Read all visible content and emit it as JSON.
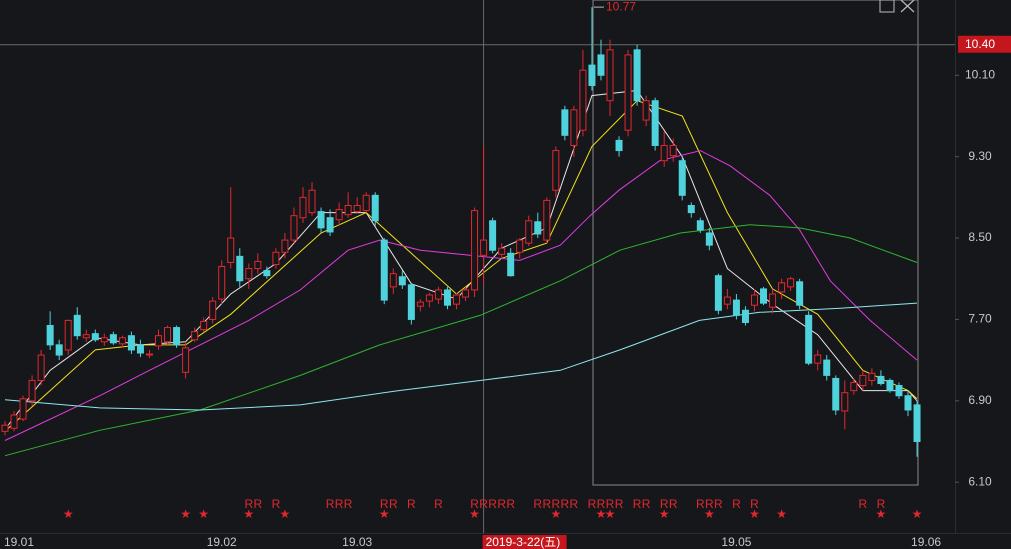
{
  "chart_data": {
    "type": "candlestick",
    "up_color": "#e0282f",
    "down_color": "#4fd2dc",
    "ylim": [
      5.63,
      10.84
    ],
    "yticks": [
      {
        "value": 10.1,
        "label": "10.10"
      },
      {
        "value": 9.3,
        "label": "9.30"
      },
      {
        "value": 8.5,
        "label": "8.50"
      },
      {
        "value": 7.7,
        "label": "7.70"
      },
      {
        "value": 6.9,
        "label": "6.90"
      },
      {
        "value": 6.1,
        "label": "6.10"
      }
    ],
    "categories": [
      "19.01",
      null,
      null,
      null,
      null,
      null,
      null,
      null,
      null,
      null,
      null,
      null,
      null,
      null,
      null,
      null,
      null,
      null,
      null,
      null,
      null,
      null,
      null,
      null,
      "19.02",
      null,
      null,
      null,
      null,
      null,
      null,
      null,
      null,
      null,
      null,
      null,
      null,
      null,
      null,
      "19.03",
      null,
      null,
      null,
      null,
      null,
      null,
      null,
      null,
      null,
      null,
      null,
      null,
      null,
      "2019-3-22(五)",
      null,
      null,
      null,
      null,
      null,
      null,
      null,
      null,
      null,
      null,
      null,
      null,
      null,
      null,
      null,
      null,
      null,
      null,
      null,
      null,
      null,
      null,
      null,
      null,
      null,
      null,
      null,
      "19.05",
      null,
      null,
      null,
      null,
      null,
      null,
      null,
      null,
      null,
      null,
      null,
      null,
      null,
      null,
      null,
      null,
      null,
      null,
      null,
      null,
      "19.06"
    ],
    "candles": [
      [
        6.6,
        6.7,
        6.56,
        6.66
      ],
      [
        6.63,
        6.8,
        6.6,
        6.76
      ],
      [
        6.72,
        6.95,
        6.7,
        6.92
      ],
      [
        6.9,
        7.15,
        6.85,
        7.1
      ],
      [
        7.1,
        7.4,
        7.05,
        7.35
      ],
      [
        7.64,
        7.78,
        7.4,
        7.45
      ],
      [
        7.45,
        7.5,
        7.3,
        7.35
      ],
      [
        7.4,
        7.7,
        7.35,
        7.69
      ],
      [
        7.74,
        7.82,
        7.5,
        7.54
      ],
      [
        7.52,
        7.6,
        7.48,
        7.55
      ],
      [
        7.56,
        7.6,
        7.48,
        7.5
      ],
      [
        7.48,
        7.56,
        7.44,
        7.52
      ],
      [
        7.55,
        7.58,
        7.45,
        7.47
      ],
      [
        7.46,
        7.54,
        7.42,
        7.52
      ],
      [
        7.54,
        7.58,
        7.36,
        7.4
      ],
      [
        7.45,
        7.5,
        7.33,
        7.37
      ],
      [
        7.36,
        7.4,
        7.32,
        7.36
      ],
      [
        7.44,
        7.6,
        7.4,
        7.54
      ],
      [
        7.48,
        7.64,
        7.45,
        7.62
      ],
      [
        7.62,
        7.64,
        7.42,
        7.45
      ],
      [
        7.18,
        7.48,
        7.12,
        7.42
      ],
      [
        7.5,
        7.62,
        7.48,
        7.58
      ],
      [
        7.6,
        7.72,
        7.58,
        7.68
      ],
      [
        7.7,
        7.92,
        7.66,
        7.88
      ],
      [
        7.9,
        8.28,
        7.85,
        8.22
      ],
      [
        8.26,
        9.0,
        8.2,
        8.5
      ],
      [
        8.32,
        8.4,
        8.02,
        8.08
      ],
      [
        8.1,
        8.25,
        8.0,
        8.2
      ],
      [
        8.2,
        8.35,
        8.15,
        8.27
      ],
      [
        8.18,
        8.22,
        8.1,
        8.13
      ],
      [
        8.24,
        8.4,
        8.2,
        8.36
      ],
      [
        8.36,
        8.55,
        8.3,
        8.48
      ],
      [
        8.48,
        8.8,
        8.45,
        8.72
      ],
      [
        8.7,
        9.0,
        8.65,
        8.9
      ],
      [
        8.75,
        9.05,
        8.72,
        8.97
      ],
      [
        8.76,
        8.8,
        8.55,
        8.6
      ],
      [
        8.7,
        8.78,
        8.52,
        8.56
      ],
      [
        8.68,
        8.85,
        8.62,
        8.78
      ],
      [
        8.73,
        8.95,
        8.7,
        8.82
      ],
      [
        8.76,
        8.9,
        8.74,
        8.82
      ],
      [
        8.77,
        8.95,
        8.75,
        8.92
      ],
      [
        8.92,
        8.95,
        8.62,
        8.67
      ],
      [
        8.48,
        8.5,
        7.85,
        7.89
      ],
      [
        8.02,
        8.2,
        7.95,
        8.15
      ],
      [
        8.12,
        8.18,
        8.0,
        8.04
      ],
      [
        8.04,
        8.06,
        7.65,
        7.7
      ],
      [
        7.83,
        7.9,
        7.78,
        7.87
      ],
      [
        7.88,
        7.96,
        7.82,
        7.94
      ],
      [
        7.9,
        8.02,
        7.85,
        7.99
      ],
      [
        7.99,
        8.02,
        7.8,
        7.84
      ],
      [
        7.85,
        7.96,
        7.8,
        7.94
      ],
      [
        7.92,
        8.02,
        7.88,
        7.99
      ],
      [
        7.99,
        8.8,
        7.92,
        8.77
      ],
      [
        8.33,
        9.4,
        8.05,
        8.48
      ],
      [
        8.67,
        8.7,
        8.35,
        8.38
      ],
      [
        8.34,
        8.45,
        8.3,
        8.4
      ],
      [
        8.35,
        8.4,
        8.12,
        8.13
      ],
      [
        8.36,
        8.5,
        8.3,
        8.48
      ],
      [
        8.45,
        8.72,
        8.42,
        8.67
      ],
      [
        8.66,
        8.75,
        8.5,
        8.54
      ],
      [
        8.48,
        8.9,
        8.45,
        8.87
      ],
      [
        8.97,
        9.4,
        8.9,
        9.36
      ],
      [
        9.76,
        9.8,
        9.46,
        9.51
      ],
      [
        9.41,
        9.8,
        9.3,
        9.76
      ],
      [
        9.56,
        10.35,
        9.5,
        10.15
      ],
      [
        10.2,
        10.77,
        9.95,
        10.0
      ],
      [
        10.3,
        10.45,
        10.05,
        10.1
      ],
      [
        9.85,
        10.45,
        9.7,
        10.35
      ],
      [
        9.46,
        9.5,
        9.3,
        9.36
      ],
      [
        9.56,
        10.35,
        9.5,
        10.3
      ],
      [
        10.35,
        10.4,
        9.8,
        9.85
      ],
      [
        9.66,
        9.9,
        9.6,
        9.85
      ],
      [
        9.85,
        9.88,
        9.36,
        9.41
      ],
      [
        9.26,
        9.55,
        9.2,
        9.41
      ],
      [
        9.31,
        9.48,
        9.25,
        9.41
      ],
      [
        9.26,
        9.3,
        8.87,
        8.92
      ],
      [
        8.82,
        8.85,
        8.7,
        8.75
      ],
      [
        8.67,
        8.7,
        8.55,
        8.58
      ],
      [
        8.55,
        8.6,
        8.38,
        8.43
      ],
      [
        8.13,
        8.15,
        7.75,
        7.79
      ],
      [
        7.85,
        8.0,
        7.8,
        7.92
      ],
      [
        7.89,
        7.95,
        7.7,
        7.74
      ],
      [
        7.79,
        7.83,
        7.64,
        7.67
      ],
      [
        7.84,
        8.0,
        7.78,
        7.94
      ],
      [
        8.0,
        8.02,
        7.84,
        7.86
      ],
      [
        7.82,
        8.0,
        7.76,
        7.95
      ],
      [
        7.97,
        8.1,
        7.9,
        8.06
      ],
      [
        8.02,
        8.12,
        7.98,
        8.1
      ],
      [
        8.07,
        8.1,
        7.8,
        7.84
      ],
      [
        7.74,
        7.78,
        7.25,
        7.27
      ],
      [
        7.27,
        7.4,
        7.2,
        7.35
      ],
      [
        7.3,
        7.35,
        7.1,
        7.15
      ],
      [
        7.12,
        7.15,
        6.76,
        6.81
      ],
      [
        6.8,
        7.1,
        6.62,
        6.98
      ],
      [
        7.0,
        7.12,
        6.96,
        7.08
      ],
      [
        7.05,
        7.2,
        7.0,
        7.15
      ],
      [
        7.1,
        7.22,
        7.05,
        7.17
      ],
      [
        7.14,
        7.2,
        7.05,
        7.07
      ],
      [
        7.1,
        7.12,
        6.98,
        7.0
      ],
      [
        7.05,
        7.08,
        6.92,
        6.95
      ],
      [
        6.95,
        7.0,
        6.75,
        6.81
      ],
      [
        6.86,
        6.9,
        6.35,
        6.5
      ]
    ],
    "ma_lines": [
      {
        "color": "#e8e8e8",
        "x": [
          0,
          5,
          10,
          15,
          20,
          25,
          30,
          35,
          40,
          45,
          50,
          55,
          60,
          65,
          70,
          75,
          80,
          85,
          90,
          95,
          100,
          101
        ],
        "values": [
          6.62,
          7.2,
          7.52,
          7.45,
          7.48,
          7.95,
          8.25,
          8.75,
          8.75,
          8.05,
          7.9,
          8.4,
          8.6,
          9.9,
          9.95,
          9.3,
          8.2,
          7.85,
          7.55,
          7.0,
          7.0,
          6.9
        ]
      },
      {
        "color": "#f2e21c",
        "x": [
          0,
          5,
          10,
          15,
          20,
          25,
          30,
          35,
          40,
          45,
          50,
          55,
          60,
          65,
          70,
          75,
          80,
          85,
          90,
          95,
          100,
          101
        ],
        "values": [
          6.6,
          7.0,
          7.4,
          7.45,
          7.45,
          7.75,
          8.15,
          8.55,
          8.75,
          8.35,
          7.95,
          8.3,
          8.45,
          9.4,
          9.85,
          9.7,
          8.75,
          8.0,
          7.75,
          7.2,
          7.0,
          6.92
        ]
      },
      {
        "color": "#e23ce0",
        "x": [
          0,
          10.5,
          16,
          21.6,
          27,
          32.7,
          38,
          41.5,
          46,
          51.5,
          57,
          61.5,
          64.8,
          68,
          72.5,
          77,
          80.3,
          84.7,
          88,
          91.4,
          95.8,
          101
        ],
        "values": [
          6.51,
          6.95,
          7.2,
          7.45,
          7.69,
          7.99,
          8.38,
          8.48,
          8.38,
          8.33,
          8.28,
          8.43,
          8.72,
          8.97,
          9.26,
          9.36,
          9.21,
          8.92,
          8.58,
          8.08,
          7.69,
          7.3
        ]
      },
      {
        "color": "#2fb52f",
        "x": [
          0,
          10.5,
          21.6,
          32.7,
          41.5,
          52.6,
          61.5,
          68.1,
          74.8,
          82.5,
          88,
          93.6,
          101
        ],
        "values": [
          6.36,
          6.61,
          6.81,
          7.15,
          7.45,
          7.74,
          8.08,
          8.38,
          8.55,
          8.63,
          8.6,
          8.5,
          8.26
        ]
      },
      {
        "color": "#8fe8f0",
        "x": [
          0,
          10.5,
          21.6,
          32.7,
          43.6,
          52.6,
          61.5,
          68.1,
          76.9,
          83.6,
          92.5,
          101
        ],
        "values": [
          6.91,
          6.83,
          6.81,
          6.86,
          7.0,
          7.1,
          7.2,
          7.4,
          7.69,
          7.77,
          7.81,
          7.86
        ]
      }
    ],
    "signals": [
      {
        "label": "R",
        "color": "#e0282f",
        "x": [
          27,
          28,
          30,
          36,
          37,
          38,
          42,
          43,
          45,
          48,
          52,
          53,
          54,
          55,
          56,
          59,
          60,
          61,
          62,
          63,
          65,
          66,
          67,
          68,
          70,
          71,
          73,
          74,
          77,
          78,
          79,
          81,
          83,
          95,
          97
        ]
      },
      {
        "label": "★",
        "color": "#e0282f",
        "x": [
          7,
          20,
          22,
          27,
          31,
          42,
          52,
          61,
          66,
          67,
          73,
          78,
          83,
          86,
          97,
          101
        ]
      }
    ],
    "high_marker": {
      "index": 65,
      "value": 10.77,
      "label": "10.77"
    },
    "crosshair": {
      "index": 53,
      "price": {
        "value": 10.4,
        "label": "10.40"
      }
    }
  }
}
